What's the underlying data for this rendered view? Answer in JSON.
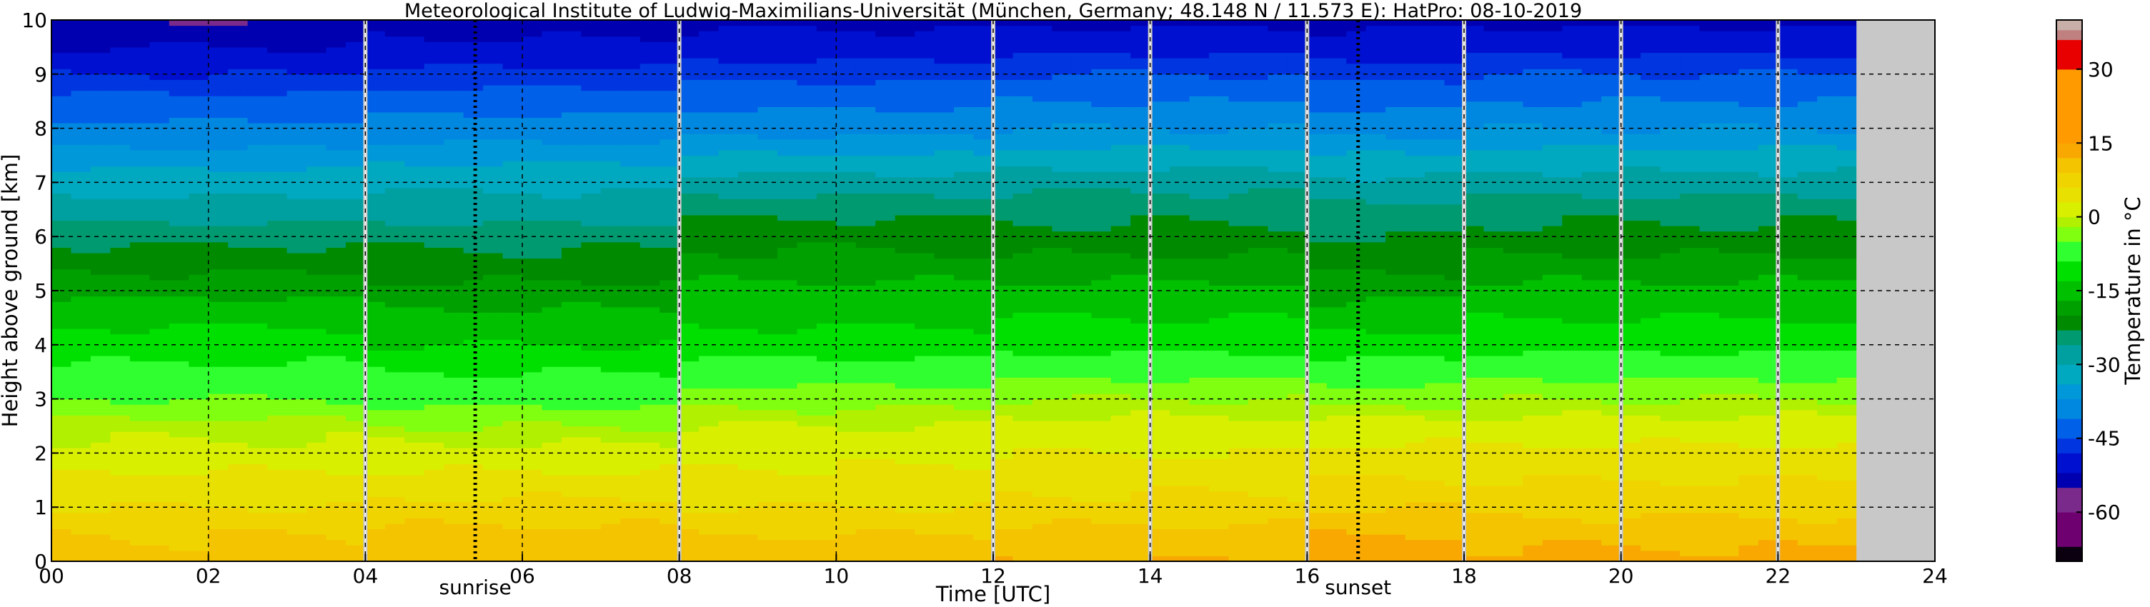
{
  "chart_data": {
    "type": "heatmap",
    "title": "Meteorological Institute of Ludwig-Maximilians-Universität (München, Germany; 48.148 N / 11.573 E):    HatPro: 08-10-2019",
    "xlabel": "Time [UTC]",
    "ylabel": "Height above ground [km]",
    "xlim": [
      0,
      24
    ],
    "ylim": [
      0,
      10
    ],
    "x_ticks": [
      "00",
      "02",
      "04",
      "06",
      "08",
      "10",
      "12",
      "14",
      "16",
      "18",
      "20",
      "22",
      "24"
    ],
    "y_ticks": [
      "0",
      "1",
      "2",
      "3",
      "4",
      "5",
      "6",
      "7",
      "8",
      "9",
      "10"
    ],
    "grid": true,
    "data_end_hour": 23,
    "gap_hours": [
      4,
      8,
      12,
      14,
      16,
      18,
      20,
      22
    ],
    "annotations": [
      {
        "label": "sunrise",
        "hour": 5.4
      },
      {
        "label": "sunset",
        "hour": 16.65
      }
    ],
    "colorbar": {
      "label": "Temperature in °C",
      "ticks": [
        "-60",
        "-45",
        "-30",
        "-15",
        "0",
        "15",
        "30"
      ],
      "tick_values": [
        -60,
        -45,
        -30,
        -15,
        0,
        15,
        30
      ],
      "range": [
        -70,
        40
      ]
    },
    "temperature_profile": {
      "heights_km": [
        0,
        0.5,
        1,
        1.5,
        2,
        2.5,
        3,
        3.5,
        4,
        4.5,
        5,
        5.5,
        6,
        6.5,
        7,
        7.5,
        8,
        8.5,
        9,
        9.5,
        10
      ],
      "periods": [
        {
          "from": 0,
          "to": 4,
          "temps": [
            10,
            9,
            6,
            4,
            1,
            -1,
            -5,
            -8,
            -11,
            -14,
            -18,
            -21,
            -24,
            -28,
            -32,
            -36,
            -40,
            -44,
            -48,
            -52,
            -55
          ]
        },
        {
          "from": 4,
          "to": 8,
          "temps": [
            11,
            10,
            7,
            4,
            1,
            -2,
            -6,
            -9,
            -13,
            -16,
            -19,
            -22,
            -24,
            -28,
            -31,
            -35,
            -39,
            -43,
            -47,
            -51,
            -54
          ]
        },
        {
          "from": 8,
          "to": 12,
          "temps": [
            11,
            9,
            6,
            4,
            2,
            0,
            -3,
            -7,
            -11,
            -14,
            -16,
            -19,
            -21,
            -24,
            -28,
            -34,
            -38,
            -42,
            -46,
            -50,
            -53
          ]
        },
        {
          "from": 12,
          "to": 16,
          "temps": [
            12,
            10,
            7,
            5,
            3,
            1,
            -2,
            -6,
            -10,
            -13,
            -16,
            -19,
            -22,
            -24,
            -27,
            -33,
            -37,
            -41,
            -45,
            -49,
            -53
          ]
        },
        {
          "from": 16,
          "to": 18,
          "temps": [
            14,
            12,
            9,
            6,
            4,
            1,
            -3,
            -7,
            -11,
            -15,
            -18,
            -21,
            -23,
            -25,
            -29,
            -34,
            -38,
            -42,
            -46,
            -50,
            -53
          ]
        },
        {
          "from": 18,
          "to": 23,
          "temps": [
            13,
            11,
            8,
            6,
            4,
            1,
            -2,
            -6,
            -10,
            -13,
            -16,
            -19,
            -22,
            -24,
            -28,
            -33,
            -37,
            -41,
            -45,
            -49,
            -53
          ]
        }
      ]
    }
  }
}
